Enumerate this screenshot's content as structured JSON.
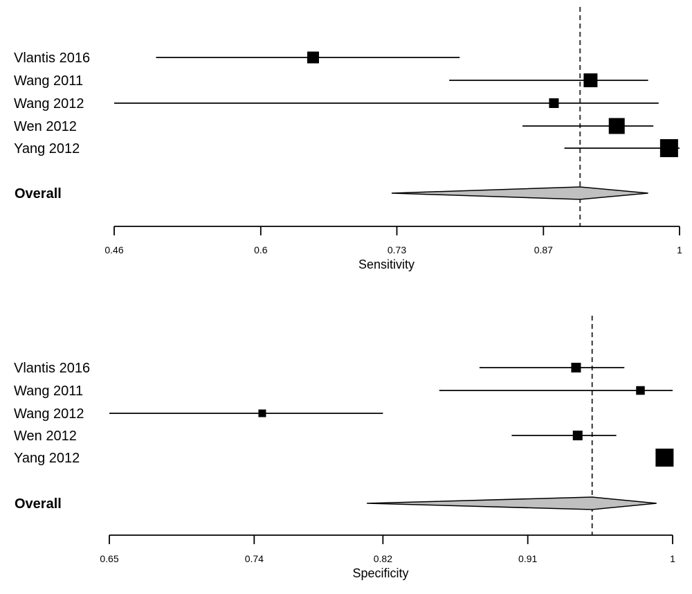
{
  "chart_data": [
    {
      "type": "forest",
      "xlabel": "Sensitivity",
      "xlim": [
        0.46,
        1.0
      ],
      "ticks": [
        "0.46",
        "0.6",
        "0.73",
        "0.87",
        "1"
      ],
      "reference_line": 0.905,
      "studies": [
        {
          "label": "Vlantis 2016",
          "estimate": 0.65,
          "lower": 0.5,
          "upper": 0.79,
          "weight": 3
        },
        {
          "label": "Wang 2011",
          "estimate": 0.915,
          "lower": 0.78,
          "upper": 0.97,
          "weight": 4
        },
        {
          "label": "Wang 2012",
          "estimate": 0.88,
          "lower": 0.46,
          "upper": 0.98,
          "weight": 2
        },
        {
          "label": "Wen 2012",
          "estimate": 0.94,
          "lower": 0.85,
          "upper": 0.975,
          "weight": 5
        },
        {
          "label": "Yang 2012",
          "estimate": 0.99,
          "lower": 0.89,
          "upper": 1.0,
          "weight": 6
        }
      ],
      "overall": {
        "label": "Overall",
        "estimate": 0.905,
        "lower": 0.725,
        "upper": 0.97
      },
      "colors": {
        "diamond": "#c0c0c0",
        "marker": "#000000"
      }
    },
    {
      "type": "forest",
      "xlabel": "Specificity",
      "xlim": [
        0.65,
        1.0
      ],
      "ticks": [
        "0.65",
        "0.74",
        "0.82",
        "0.91",
        "1"
      ],
      "reference_line": 0.95,
      "studies": [
        {
          "label": "Vlantis 2016",
          "estimate": 0.94,
          "lower": 0.88,
          "upper": 0.97,
          "weight": 2
        },
        {
          "label": "Wang 2011",
          "estimate": 0.98,
          "lower": 0.855,
          "upper": 1.0,
          "weight": 1.5
        },
        {
          "label": "Wang 2012",
          "estimate": 0.745,
          "lower": 0.65,
          "upper": 0.82,
          "weight": 1
        },
        {
          "label": "Wen 2012",
          "estimate": 0.941,
          "lower": 0.9,
          "upper": 0.965,
          "weight": 2
        },
        {
          "label": "Yang 2012",
          "estimate": 0.995,
          "lower": 0.99,
          "upper": 1.0,
          "weight": 6
        }
      ],
      "overall": {
        "label": "Overall",
        "estimate": 0.95,
        "lower": 0.81,
        "upper": 0.99
      },
      "colors": {
        "diamond": "#c0c0c0",
        "marker": "#000000"
      }
    }
  ]
}
